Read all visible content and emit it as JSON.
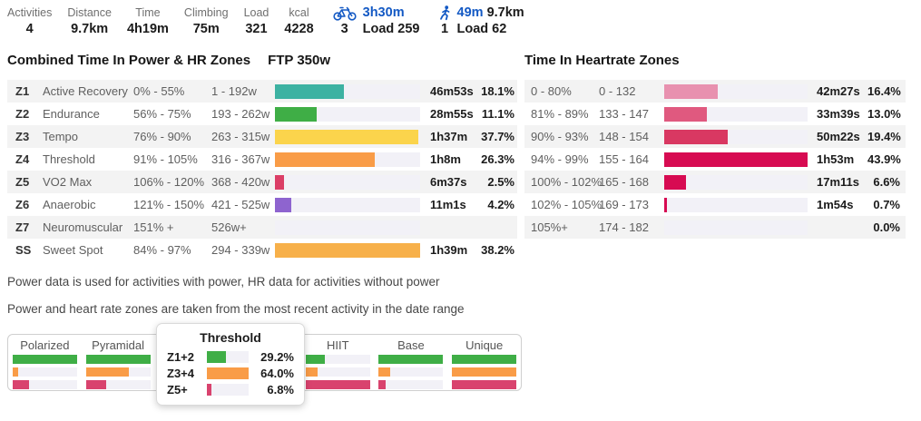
{
  "header": {
    "accent_blue": "#1359C4",
    "stats": [
      {
        "label": "Activities",
        "value": "4"
      },
      {
        "label": "Distance",
        "value": "9.7km"
      },
      {
        "label": "Time",
        "value": "4h19m"
      },
      {
        "label": "Climbing",
        "value": "75m"
      },
      {
        "label": "Load",
        "value": "321"
      },
      {
        "label": "kcal",
        "value": "4228"
      }
    ],
    "ride": {
      "time": "3h30m",
      "count": "3",
      "load": "Load 259"
    },
    "run": {
      "time": "49m",
      "distance": "9.7km",
      "count": "1",
      "load": "Load 62"
    }
  },
  "power_section": {
    "title": "Combined Time In Power & HR Zones",
    "ftp": "FTP 350w",
    "max_pct": 38.2,
    "track_color": "#F2F1F7",
    "rows": [
      {
        "code": "Z1",
        "name": "Active Recovery",
        "range_pct": "0% - 55%",
        "range_w": "1 - 192w",
        "time": "46m53s",
        "pct": "18.1%",
        "pct_num": 18.1,
        "color": "#3DB2A2"
      },
      {
        "code": "Z2",
        "name": "Endurance",
        "range_pct": "56% - 75%",
        "range_w": "193 - 262w",
        "time": "28m55s",
        "pct": "11.1%",
        "pct_num": 11.1,
        "color": "#3FAE46"
      },
      {
        "code": "Z3",
        "name": "Tempo",
        "range_pct": "76% - 90%",
        "range_w": "263 - 315w",
        "time": "1h37m",
        "pct": "37.7%",
        "pct_num": 37.7,
        "color": "#FBD44C"
      },
      {
        "code": "Z4",
        "name": "Threshold",
        "range_pct": "91% - 105%",
        "range_w": "316 - 367w",
        "time": "1h8m",
        "pct": "26.3%",
        "pct_num": 26.3,
        "color": "#F99C47"
      },
      {
        "code": "Z5",
        "name": "VO2 Max",
        "range_pct": "106% - 120%",
        "range_w": "368 - 420w",
        "time": "6m37s",
        "pct": "2.5%",
        "pct_num": 2.5,
        "color": "#DB3E66"
      },
      {
        "code": "Z6",
        "name": "Anaerobic",
        "range_pct": "121% - 150%",
        "range_w": "421 - 525w",
        "time": "11m1s",
        "pct": "4.2%",
        "pct_num": 4.2,
        "color": "#8E64CF"
      },
      {
        "code": "Z7",
        "name": "Neuromuscular",
        "range_pct": "151% +",
        "range_w": "526w+",
        "time": "",
        "pct": "",
        "pct_num": 0,
        "color": "#CCCCCC"
      },
      {
        "code": "SS",
        "name": "Sweet Spot",
        "range_pct": "84% - 97%",
        "range_w": "294 - 339w",
        "time": "1h39m",
        "pct": "38.2%",
        "pct_num": 38.2,
        "color": "#F7B04A"
      }
    ]
  },
  "hr_section": {
    "title": "Time In Heartrate Zones",
    "max_pct": 43.9,
    "rows": [
      {
        "range_pct": "0 - 80%",
        "range_bpm": "0 - 132",
        "time": "42m27s",
        "pct": "16.4%",
        "pct_num": 16.4,
        "color": "#E891AF"
      },
      {
        "range_pct": "81% - 89%",
        "range_bpm": "133 - 147",
        "time": "33m39s",
        "pct": "13.0%",
        "pct_num": 13.0,
        "color": "#E0597F"
      },
      {
        "range_pct": "90% - 93%",
        "range_bpm": "148 - 154",
        "time": "50m22s",
        "pct": "19.4%",
        "pct_num": 19.4,
        "color": "#D93862"
      },
      {
        "range_pct": "94% - 99%",
        "range_bpm": "155 - 164",
        "time": "1h53m",
        "pct": "43.9%",
        "pct_num": 43.9,
        "color": "#D70B52"
      },
      {
        "range_pct": "100% - 102%",
        "range_bpm": "165 - 168",
        "time": "17m11s",
        "pct": "6.6%",
        "pct_num": 6.6,
        "color": "#D70B52"
      },
      {
        "range_pct": "102% - 105%",
        "range_bpm": "169 - 173",
        "time": "1m54s",
        "pct": "0.7%",
        "pct_num": 0.7,
        "color": "#D70B52"
      },
      {
        "range_pct": "105%+",
        "range_bpm": "174 - 182",
        "time": "",
        "pct": "0.0%",
        "pct_num": 0,
        "color": "#D70B52"
      }
    ]
  },
  "notes": [
    "Power data is used for activities with power, HR data for activities without power",
    "Power and heart rate zones are taken from the most recent activity in the date range"
  ],
  "distribution": {
    "bar_colors": [
      "#3FAE46",
      "#F99C47",
      "#D9436E"
    ],
    "columns": [
      {
        "label": "Polarized",
        "bars": [
          100,
          8,
          26
        ]
      },
      {
        "label": "Pyramidal",
        "bars": [
          100,
          67,
          32
        ]
      },
      {
        "label": "",
        "bars": []
      },
      {
        "label": "",
        "bars": []
      },
      {
        "label": "HIIT",
        "bars": [
          30,
          19,
          100
        ]
      },
      {
        "label": "Base",
        "bars": [
          100,
          18,
          10
        ]
      },
      {
        "label": "Unique",
        "bars": [
          100,
          100,
          100
        ]
      }
    ]
  },
  "tooltip": {
    "title": "Threshold",
    "max_pct": 64.0,
    "rows": [
      {
        "label": "Z1+2",
        "pct": "29.2%",
        "pct_num": 29.2,
        "color": "#3FAE46"
      },
      {
        "label": "Z3+4",
        "pct": "64.0%",
        "pct_num": 64.0,
        "color": "#F99C47"
      },
      {
        "label": "Z5+",
        "pct": "6.8%",
        "pct_num": 6.8,
        "color": "#D9436E"
      }
    ]
  }
}
